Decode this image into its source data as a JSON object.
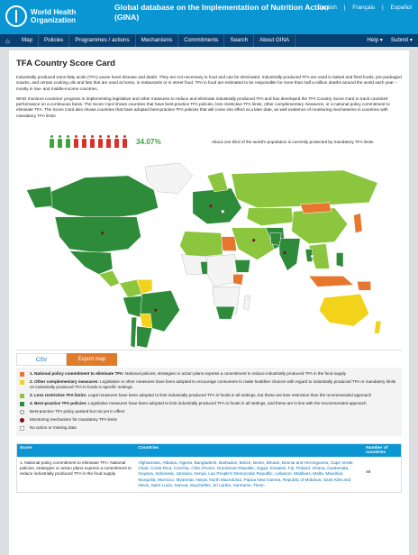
{
  "header": {
    "logo_line1": "World Health",
    "logo_line2": "Organization",
    "title": "Global database on the Implementation of Nutrition Action (GINA)",
    "langs": [
      "English",
      "Français",
      "Español"
    ]
  },
  "nav": {
    "items": [
      "Map",
      "Policies",
      "Programmes / actions",
      "Mechanisms",
      "Commitments",
      "Search",
      "About GINA"
    ],
    "help": "Help ▾",
    "submit": "Submit ▾"
  },
  "page": {
    "title": "TFA Country Score Card",
    "para1": "Industrially produced trans-fatty acids (TFA) cause heart disease and death. They are not necessary in food and can be eliminated. Industrially produced TFA are used in baked and fried foods, pre-packaged snacks, and certain cooking oils and fats that are used at home, in restaurants or in street food. TFA in food are estimated to be responsible for more than half a million deaths around the world each year – mostly in low- and middle-income countries.",
    "para2": "WHO monitors countries' progress in implementing legislative and other measures to reduce and eliminate industrially produced TFA and has developed the TFA Country Score Card to track countries' performance on a continuous basis. The Score Card shows countries that have best-practice TFA policies, less restrictive TFA limits, other complementary measures, or a national policy commitment to eliminate TFA. The Score Card also shows countries that have adopted best-practice TFA policies that will come into effect at a later date, as well existence of monitoring mechanisms in countries with mandatory TFA limits",
    "percent": "34.07%",
    "stat_note": "About one third of the world's population is currently protected by mandatory TFA limits",
    "people": [
      {
        "color": "#3ea43e"
      },
      {
        "color": "#3ea43e"
      },
      {
        "color": "#3ea43e"
      },
      {
        "color": "#d9312b"
      },
      {
        "color": "#d9312b"
      },
      {
        "color": "#d9312b"
      },
      {
        "color": "#d9312b"
      },
      {
        "color": "#d9312b"
      },
      {
        "color": "#d9312b"
      },
      {
        "color": "#d9312b"
      }
    ]
  },
  "buttons": {
    "csv": "CSV",
    "export": "Export map"
  },
  "legend": [
    {
      "color": "#e8772e",
      "shape": "square",
      "bold": "1. National policy commitment to eliminate TFA:",
      "text": " National policies, strategies or action plans express a commitment to reduce industrially produced TFA in the food supply"
    },
    {
      "color": "#f2d21b",
      "shape": "square",
      "bold": "2. Other complementary measures:",
      "text": " Legislative or other measures have been adopted to encourage consumers to make healthier choices with regard to industrially produced TFA or mandatory limits on industrially produced TFA in foods in specific settings"
    },
    {
      "color": "#8cc63e",
      "shape": "square",
      "bold": "3. Less restrictive TFA limits:",
      "text": " Legal measures have been adopted to limit industrially produced TFA in foods in all settings, but these are less restrictive than the recommended approach"
    },
    {
      "color": "#2e8b3a",
      "shape": "square",
      "bold": "4. Best-practice TFA policies:",
      "text": " Legislative measures have been adopted to limit industrially produced TFA in foods in all settings, and these are in line with the recommended approach"
    },
    {
      "color": "#ffffff",
      "shape": "circle",
      "bold": "",
      "text": "Best-practice TFA policy passed but not yet in effect"
    },
    {
      "color": "#7a1020",
      "shape": "circle",
      "bold": "",
      "text": "Monitoring mechanism for mandatory TFA limits"
    },
    {
      "color": "#ffffff",
      "shape": "empty",
      "bold": "",
      "text": "No action or missing data"
    }
  ],
  "table": {
    "headers": [
      "Score",
      "Countries",
      "Number of countries"
    ],
    "row1": {
      "score": "1. National policy commitment to eliminate TFA: National policies, strategies or action plans express a commitment to reduce industrially produced TFA in the food supply",
      "countries": "Afghanistan, Albania, Algeria, Bangladesh, Barbados, Belize, Benin, Bhutan, Bosnia and Herzegovina, Cape Verde, Chad, Costa Rica, Czechia, Côte d'Ivoire, Dominican Republic, Egypt, Eswatini, Fiji, Finland, Ghana, Guatemala, Guyana, Indonesia, Jamaica, Kenya, Lao People's Democratic Republic, Lebanon, Maldives, Malta, Mauritius, Mongolia, Morocco, Myanmar, Nepal, North Macedonia, Papua New Guinea, Republic of Moldova, Saint Kitts and Nevis, Saint Lucia, Samoa, Seychelles, Sri Lanka, Suriname, Timor-",
      "count": "49"
    }
  },
  "colors": {
    "header": "#0a95d3",
    "nav": "#0a3f72",
    "accent": "#e07b2c"
  }
}
